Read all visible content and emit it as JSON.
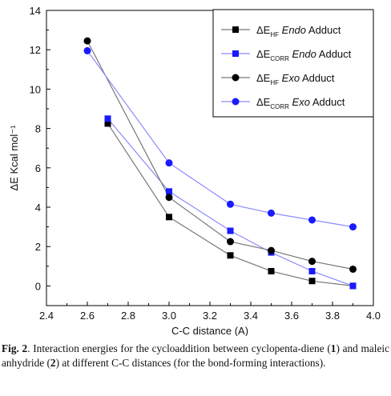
{
  "chart_data": {
    "type": "line",
    "xlabel": "C-C distance (A)",
    "ylabel": "ΔE Kcal mol⁻¹",
    "xlim": [
      2.4,
      4.0
    ],
    "ylim": [
      -1,
      14
    ],
    "xticks": [
      "2.4",
      "2.6",
      "2.8",
      "3.0",
      "3.2",
      "3.4",
      "3.6",
      "3.8",
      "4.0"
    ],
    "yticks": [
      "0",
      "2",
      "4",
      "6",
      "8",
      "10",
      "12",
      "14"
    ],
    "grid": false,
    "legend_position": "top-right",
    "series": [
      {
        "name": "ΔE_HF Endo Adduct",
        "marker": "square",
        "color": "#000000",
        "line_color": "#777777",
        "x": [
          2.7,
          3.0,
          3.3,
          3.5,
          3.7,
          3.9
        ],
        "y": [
          8.25,
          3.5,
          1.55,
          0.75,
          0.25,
          0.0
        ]
      },
      {
        "name": "ΔE_CORR Endo Adduct",
        "marker": "square",
        "color": "#1a1aff",
        "line_color": "#8a8aff",
        "x": [
          2.7,
          3.0,
          3.3,
          3.5,
          3.7,
          3.9
        ],
        "y": [
          8.5,
          4.8,
          2.8,
          1.7,
          0.75,
          0.0
        ]
      },
      {
        "name": "ΔE_HF Exo Adduct",
        "marker": "circle",
        "color": "#000000",
        "line_color": "#777777",
        "x": [
          2.6,
          3.0,
          3.3,
          3.5,
          3.7,
          3.9
        ],
        "y": [
          12.45,
          4.5,
          2.25,
          1.8,
          1.25,
          0.85
        ]
      },
      {
        "name": "ΔE_CORR Exo Adduct",
        "marker": "circle",
        "color": "#1a1aff",
        "line_color": "#8a8aff",
        "x": [
          2.6,
          3.0,
          3.3,
          3.5,
          3.7,
          3.9
        ],
        "y": [
          11.95,
          6.25,
          4.15,
          3.7,
          3.35,
          3.0
        ]
      }
    ],
    "legend": [
      {
        "pre": "ΔE",
        "sub": "HF",
        "ital": "Endo",
        "post": " Adduct"
      },
      {
        "pre": "ΔE",
        "sub": "CORR",
        "ital": "Endo",
        "post": " Adduct"
      },
      {
        "pre": "ΔE",
        "sub": "HF",
        "ital": "Exo",
        "post": " Adduct"
      },
      {
        "pre": "ΔE",
        "sub": "CORR",
        "ital": "Exo",
        "post": " Adduct"
      }
    ]
  },
  "caption": {
    "label": "Fig. 2",
    "p1": ". Interaction energies for the cycloaddition between cyclopenta-diene (",
    "n1": "1",
    "p2": ") and maleic anhydride (",
    "n2": "2",
    "p3": ") at different C-C distances (for the bond-forming interactions)."
  }
}
